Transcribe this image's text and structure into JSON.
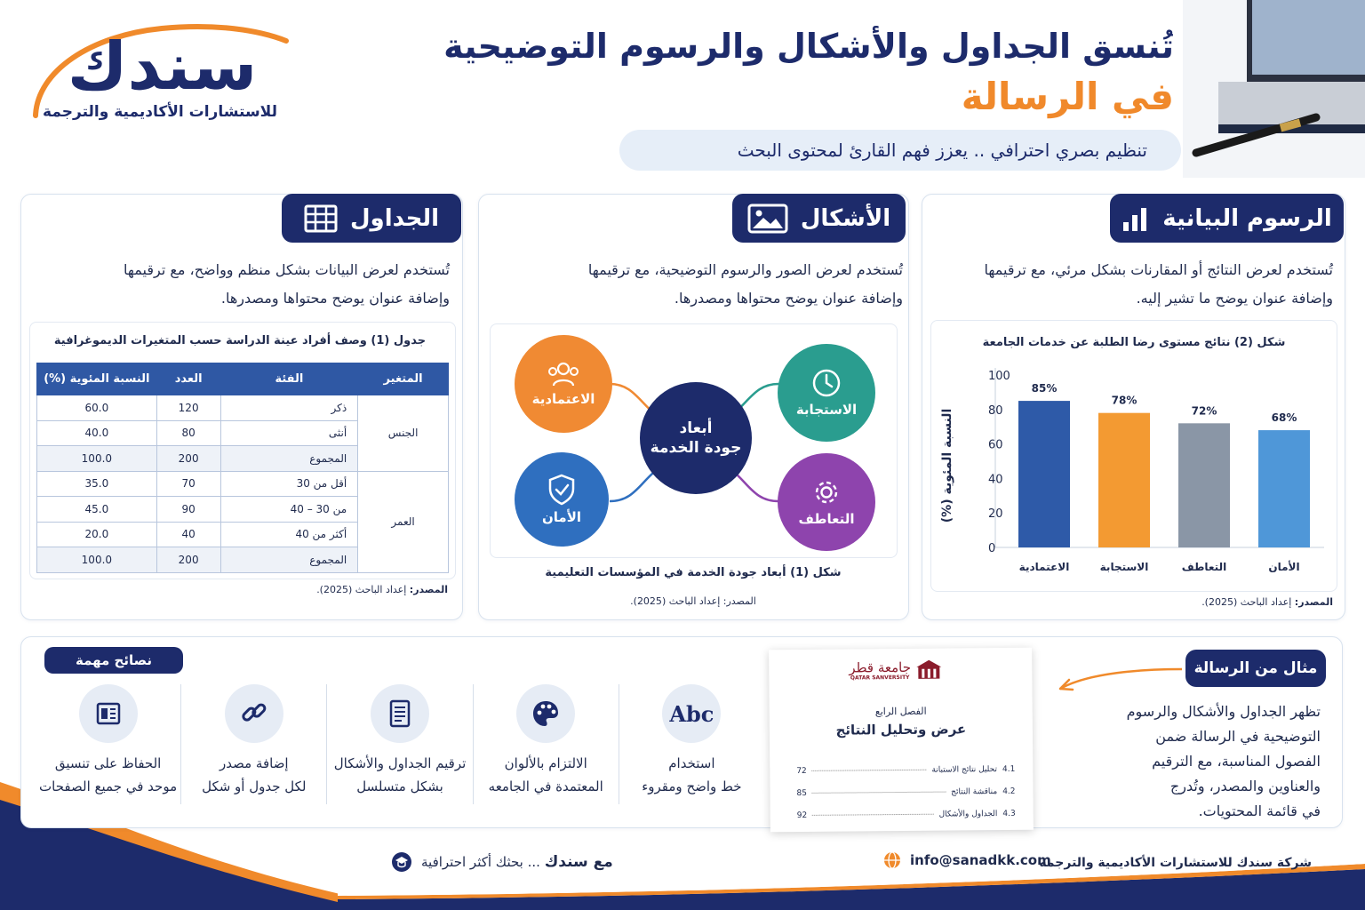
{
  "header": {
    "logo_word": "سندك",
    "logo_subtitle": "للاستشارات الأكاديمية والترجمة",
    "title_line1": "تُنسق الجداول والأشكال والرسوم التوضيحية",
    "title_line2": "في الرسالة",
    "subtitle": "تنظيم بصري احترافي .. يعزز فهم القارئ لمحتوى البحث"
  },
  "tables_panel": {
    "title": "الجداول",
    "icon": "table-icon",
    "desc_line1": "تُستخدم لعرض البيانات بشكل منظم وواضح، مع ترقيمها",
    "desc_line2": "وإضافة عنوان يوضح محتواها ومصدرها.",
    "table_caption": "جدول (1) وصف أفراد عينة الدراسة حسب المتغيرات الديموغرافية",
    "headers": [
      "المتغير",
      "الفئة",
      "العدد",
      "النسبة المئوية (%)"
    ],
    "groups": [
      {
        "name": "الجنس",
        "rows": [
          {
            "cat": "ذكر",
            "count": "120",
            "pct": "60.0"
          },
          {
            "cat": "أنثى",
            "count": "80",
            "pct": "40.0"
          },
          {
            "cat": "المجموع",
            "count": "200",
            "pct": "100.0",
            "total": true
          }
        ]
      },
      {
        "name": "العمر",
        "rows": [
          {
            "cat": "أقل من 30",
            "count": "70",
            "pct": "35.0"
          },
          {
            "cat": "من 30 – 40",
            "count": "90",
            "pct": "45.0"
          },
          {
            "cat": "أكثر من 40",
            "count": "40",
            "pct": "20.0"
          },
          {
            "cat": "المجموع",
            "count": "200",
            "pct": "100.0",
            "total": true
          }
        ]
      }
    ],
    "source_label": "المصدر:",
    "source_value": "إعداد الباحث (2025)."
  },
  "figures_panel": {
    "title": "الأشكال",
    "icon": "image-icon",
    "desc_line1": "تُستخدم لعرض الصور والرسوم التوضيحية، مع ترقيمها",
    "desc_line2": "وإضافة عنوان يوضح محتواها ومصدرها.",
    "center_line1": "أبعاد",
    "center_line2": "جودة الخدمة",
    "nodes": {
      "reliability": {
        "label": "الاعتمادية",
        "icon": "users-icon",
        "color": "#f08a33"
      },
      "responsiveness": {
        "label": "الاستجابة",
        "icon": "clock-icon",
        "color": "#2a9d8f"
      },
      "assurance": {
        "label": "الأمان",
        "icon": "shield-icon",
        "color": "#2f6fbf"
      },
      "empathy": {
        "label": "التعاطف",
        "icon": "gear-icon",
        "color": "#8e44ad"
      }
    },
    "caption": "شكل (1) أبعاد جودة الخدمة في المؤسسات التعليمية",
    "source": "المصدر: إعداد الباحث (2025)."
  },
  "charts_panel": {
    "title": "الرسوم البيانية",
    "icon": "bar-chart-icon",
    "desc_line1": "تُستخدم لعرض النتائج أو المقارنات بشكل مرئي، مع ترقيمها",
    "desc_line2": "وإضافة عنوان يوضح ما تشير إليه.",
    "source_label": "المصدر:",
    "source_value": "إعداد الباحث (2025)."
  },
  "chart_data": {
    "type": "bar",
    "title": "شكل (2) نتائج مستوى رضا الطلبة عن خدمات الجامعة",
    "categories": [
      "الاعتمادية",
      "الاستجابة",
      "التعاطف",
      "الأمان"
    ],
    "values": [
      85,
      78,
      72,
      68
    ],
    "value_labels": [
      "85%",
      "78%",
      "72%",
      "68%"
    ],
    "colors": [
      "#2e5aa8",
      "#f39a32",
      "#8a96a6",
      "#4f97d8"
    ],
    "ylabel": "النسبة المئوية (%)",
    "xlabel": "",
    "ylim": [
      0,
      100
    ],
    "yticks": [
      "0",
      "20",
      "40",
      "60",
      "80",
      "100"
    ],
    "grid": false
  },
  "tips": {
    "title": "نصائح مهمة",
    "items": [
      {
        "line1": "الحفاظ على تنسيق",
        "line2": "موحد في جميع الصفحات",
        "icon": "layout-icon"
      },
      {
        "line1": "إضافة مصدر",
        "line2": "لكل جدول أو شكل",
        "icon": "link-icon"
      },
      {
        "line1": "ترقيم الجداول والأشكال",
        "line2": "بشكل متسلسل",
        "icon": "document-icon"
      },
      {
        "line1": "الالتزام بالألوان",
        "line2": "المعتمدة في الجامعه",
        "icon": "palette-icon"
      },
      {
        "line1": "استخدام",
        "line2": "خط واضح ومقروء",
        "icon": "font-icon",
        "glyph": "Abc"
      }
    ]
  },
  "example": {
    "title": "مثال من الرسالة",
    "text_lines": [
      "تظهر الجداول والأشكال والرسوم",
      "التوضيحية في الرسالة ضمن",
      "الفصول المناسبة، مع الترقيم",
      "والعناوين والمصدر، وتُدرج",
      "في قائمة المحتويات."
    ],
    "doc": {
      "university_ar": "جامعة قطر",
      "university_en": "QATAR SANVERSITY",
      "chapter": "الفصل الرابع",
      "chapter_title": "عرض وتحليل النتائج",
      "toc": [
        {
          "num": "4.1",
          "title": "تحليل نتائج الاستبانة",
          "page": "72"
        },
        {
          "num": "4.2",
          "title": "مناقشة النتائج",
          "page": "85"
        },
        {
          "num": "4.3",
          "title": "الجداول والأشكال",
          "page": "92"
        }
      ]
    }
  },
  "footer": {
    "company": "شركة سندك للاستشارات الأكاديمية والترجمه",
    "email": "info@sanadkk.com",
    "tagline_bold": "مع سندك",
    "tagline_rest": "... بحثك أكثر احترافية"
  }
}
